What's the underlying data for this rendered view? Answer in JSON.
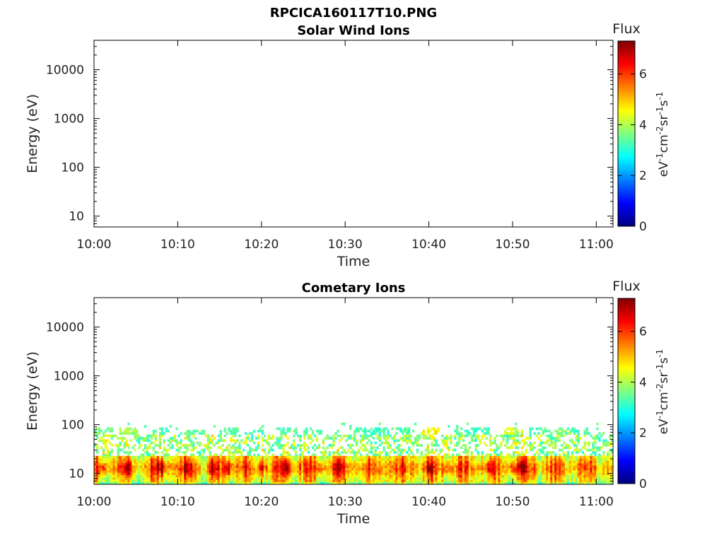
{
  "figure_title": "RPCICA160117T10.PNG",
  "chart_data": [
    {
      "type": "heatmap",
      "title": "Solar Wind Ions",
      "xlabel": "Time",
      "ylabel": "Energy (eV)",
      "x_tick_labels": [
        "10:00",
        "10:10",
        "10:20",
        "10:30",
        "10:40",
        "10:50",
        "11:00"
      ],
      "x_range": [
        "10:00",
        "11:02"
      ],
      "y_scale": "log",
      "y_tick_labels": [
        "10",
        "100",
        "1000",
        "10000"
      ],
      "y_range": [
        6,
        40000
      ],
      "colorbar": {
        "title": "Flux",
        "label_parts": [
          "eV",
          "-1",
          "cm",
          "-2",
          "sr",
          "-1",
          "s",
          "-1"
        ],
        "tick_labels": [
          "0",
          "2",
          "4",
          "6"
        ],
        "range": [
          0,
          7.3
        ],
        "colormap": "jet"
      },
      "data_note_visible": false,
      "cells": []
    },
    {
      "type": "heatmap",
      "title": "Cometary Ions",
      "xlabel": "Time",
      "ylabel": "Energy (eV)",
      "x_tick_labels": [
        "10:00",
        "10:10",
        "10:20",
        "10:30",
        "10:40",
        "10:50",
        "11:00"
      ],
      "x_range": [
        "10:00",
        "11:02"
      ],
      "y_scale": "log",
      "y_tick_labels": [
        "10",
        "100",
        "1000",
        "10000"
      ],
      "y_range": [
        6,
        40000
      ],
      "colorbar": {
        "title": "Flux",
        "label_parts": [
          "eV",
          "-1",
          "cm",
          "-2",
          "sr",
          "-1",
          "s",
          "-1"
        ],
        "tick_labels": [
          "0",
          "2",
          "4",
          "6"
        ],
        "range": [
          0,
          7.3
        ],
        "colormap": "jet"
      },
      "energy_band_eV": [
        6,
        80
      ],
      "bursts": [
        {
          "time": "10:01",
          "energy_top": 80,
          "flux": 3.6
        },
        {
          "time": "10:04",
          "energy_top": 80,
          "flux": 3.8
        },
        {
          "time": "10:08",
          "energy_top": 80,
          "flux": 3.4
        },
        {
          "time": "10:12",
          "energy_top": 70,
          "flux": 3.5
        },
        {
          "time": "10:16",
          "energy_top": 80,
          "flux": 3.4
        },
        {
          "time": "10:19",
          "energy_top": 70,
          "flux": 3.3
        },
        {
          "time": "10:23",
          "energy_top": 80,
          "flux": 3.4
        },
        {
          "time": "10:26",
          "energy_top": 70,
          "flux": 3.3
        },
        {
          "time": "10:32",
          "energy_top": 80,
          "flux": 3.2
        },
        {
          "time": "10:34",
          "energy_top": 80,
          "flux": 3.2
        },
        {
          "time": "10:37",
          "energy_top": 80,
          "flux": 3.3
        },
        {
          "time": "10:40",
          "energy_top": 80,
          "flux": 4.5
        },
        {
          "time": "10:44",
          "energy_top": 80,
          "flux": 3.4
        },
        {
          "time": "10:46",
          "energy_top": 80,
          "flux": 3.2
        },
        {
          "time": "10:50",
          "energy_top": 80,
          "flux": 4.2
        },
        {
          "time": "10:53",
          "energy_top": 80,
          "flux": 3.3
        },
        {
          "time": "10:56",
          "energy_top": 80,
          "flux": 3.5
        },
        {
          "time": "10:58",
          "energy_top": 80,
          "flux": 3.2
        }
      ],
      "hot_spots": [
        {
          "time": "10:01",
          "flux": 6.4
        },
        {
          "time": "10:04",
          "flux": 6.6
        },
        {
          "time": "10:08",
          "flux": 6.9
        },
        {
          "time": "10:11",
          "flux": 6.5
        },
        {
          "time": "10:14",
          "flux": 6.3
        },
        {
          "time": "10:16",
          "flux": 6.7
        },
        {
          "time": "10:20",
          "flux": 6.6
        },
        {
          "time": "10:23",
          "flux": 6.8
        },
        {
          "time": "10:27",
          "flux": 6.5
        },
        {
          "time": "10:29",
          "flux": 6.3
        },
        {
          "time": "10:40",
          "flux": 6.9
        },
        {
          "time": "10:42",
          "flux": 6.2
        },
        {
          "time": "10:47",
          "flux": 6.3
        },
        {
          "time": "10:50",
          "flux": 6.5
        },
        {
          "time": "10:51",
          "flux": 6.8
        }
      ]
    }
  ]
}
